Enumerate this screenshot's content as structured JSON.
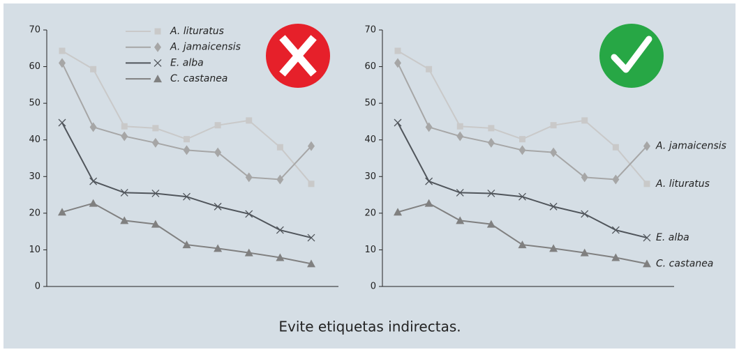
{
  "chart_data": [
    {
      "type": "line",
      "legend": "top",
      "ylim": [
        0,
        70
      ],
      "yticks": [
        0,
        10,
        20,
        30,
        40,
        50,
        60,
        70
      ],
      "categories": [
        null,
        null,
        null,
        null,
        null,
        null,
        null,
        null,
        null
      ],
      "series": [
        {
          "name": "A. lituratus",
          "color": "#c9c9c9",
          "marker": "square",
          "values": [
            64.3,
            59.3,
            43.7,
            43.2,
            40.2,
            44,
            45.3,
            38,
            28
          ]
        },
        {
          "name": "A. jamaicensis",
          "color": "#a6a6a6",
          "marker": "diamond",
          "values": [
            61,
            43.5,
            41,
            39.2,
            37.2,
            36.6,
            29.8,
            29.2,
            38.3
          ]
        },
        {
          "name": "E. alba",
          "color": "#50555b",
          "marker": "cross",
          "values": [
            44.7,
            28.7,
            25.6,
            25.4,
            24.5,
            21.8,
            19.8,
            15.4,
            13.3
          ]
        },
        {
          "name": "C. castanea",
          "color": "#808080",
          "marker": "triangle",
          "values": [
            20.3,
            22.7,
            18,
            17,
            11.4,
            10.4,
            9.2,
            7.9,
            6.2
          ]
        }
      ]
    },
    {
      "type": "line",
      "legend": "direct",
      "ylim": [
        0,
        70
      ],
      "yticks": [
        0,
        10,
        20,
        30,
        40,
        50,
        60,
        70
      ],
      "categories": [
        null,
        null,
        null,
        null,
        null,
        null,
        null,
        null,
        null
      ],
      "series": [
        {
          "name": "A. lituratus",
          "color": "#c9c9c9",
          "marker": "square",
          "values": [
            64.3,
            59.3,
            43.7,
            43.2,
            40.2,
            44,
            45.3,
            38,
            28
          ]
        },
        {
          "name": "A. jamaicensis",
          "color": "#a6a6a6",
          "marker": "diamond",
          "values": [
            61,
            43.5,
            41,
            39.2,
            37.2,
            36.6,
            29.8,
            29.2,
            38.3
          ]
        },
        {
          "name": "E. alba",
          "color": "#50555b",
          "marker": "cross",
          "values": [
            44.7,
            28.7,
            25.6,
            25.4,
            24.5,
            21.8,
            19.8,
            15.4,
            13.3
          ]
        },
        {
          "name": "C. castanea",
          "color": "#808080",
          "marker": "triangle",
          "values": [
            20.3,
            22.7,
            18,
            17,
            11.4,
            10.4,
            9.2,
            7.9,
            6.2
          ]
        }
      ]
    }
  ],
  "caption": "Evite etiquetas indirectas."
}
